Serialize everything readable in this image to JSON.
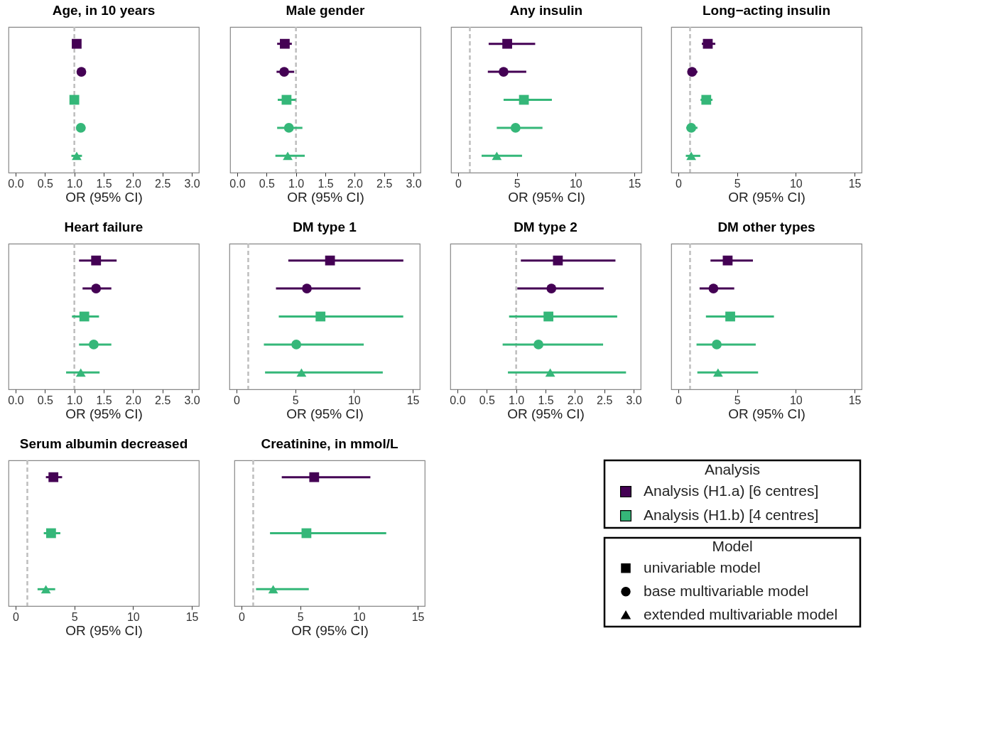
{
  "chart_data": [
    {
      "type": "scatter",
      "orientation": "horizontal",
      "title": "Age, in 10 years",
      "xlabel": "OR (95% CI)",
      "categories": [
        null,
        null,
        null,
        null,
        null
      ],
      "xlim": [
        -0.12,
        3.12
      ],
      "xticks": [
        {
          "value": 0,
          "label": "0.0"
        },
        0.5,
        {
          "value": 1,
          "label": "1.0"
        },
        1.5,
        {
          "value": 2,
          "label": "2.0"
        },
        2.5,
        {
          "value": 3,
          "label": "3.0"
        }
      ],
      "ref_lines": [
        {
          "axis": "x",
          "value": 1,
          "color": "#bebebe",
          "line_style": "dashed"
        }
      ],
      "tick_labels": "x",
      "grid": false,
      "series": [
        {
          "color": "#440154",
          "marker": "square",
          "values": [
            1.04,
            null,
            null,
            null,
            null
          ],
          "errors": [
            [
              0.97,
              1.11
            ],
            null,
            null,
            null,
            null
          ]
        },
        {
          "color": "#440154",
          "marker": "circle",
          "values": [
            null,
            1.12,
            null,
            null,
            null
          ],
          "errors": [
            null,
            [
              1.05,
              1.19
            ],
            null,
            null,
            null
          ]
        },
        {
          "color": "#35b779",
          "marker": "square",
          "values": [
            null,
            null,
            1.0,
            null,
            null
          ],
          "errors": [
            null,
            null,
            [
              0.93,
              1.07
            ],
            null,
            null
          ]
        },
        {
          "color": "#35b779",
          "marker": "circle",
          "values": [
            null,
            null,
            null,
            1.11,
            null
          ],
          "errors": [
            null,
            null,
            null,
            [
              1.03,
              1.19
            ],
            null
          ]
        },
        {
          "color": "#35b779",
          "marker": "triangle",
          "values": [
            null,
            null,
            null,
            null,
            1.04
          ],
          "errors": [
            null,
            null,
            null,
            null,
            [
              0.95,
              1.13
            ]
          ]
        }
      ]
    },
    {
      "type": "scatter",
      "orientation": "horizontal",
      "title": "Male gender",
      "xlabel": "OR (95% CI)",
      "categories": [
        null,
        null,
        null,
        null,
        null
      ],
      "xlim": [
        -0.12,
        3.12
      ],
      "xticks": [
        {
          "value": 0,
          "label": "0.0"
        },
        0.5,
        {
          "value": 1,
          "label": "1.0"
        },
        1.5,
        {
          "value": 2,
          "label": "2.0"
        },
        2.5,
        {
          "value": 3,
          "label": "3.0"
        }
      ],
      "ref_lines": [
        {
          "axis": "x",
          "value": 1,
          "color": "#bebebe",
          "line_style": "dashed"
        }
      ],
      "tick_labels": "x",
      "grid": false,
      "series": [
        {
          "color": "#440154",
          "marker": "square",
          "values": [
            0.81,
            null,
            null,
            null,
            null
          ],
          "errors": [
            [
              0.68,
              0.93
            ],
            null,
            null,
            null,
            null
          ]
        },
        {
          "color": "#440154",
          "marker": "circle",
          "values": [
            null,
            0.8,
            null,
            null,
            null
          ],
          "errors": [
            null,
            [
              0.67,
              0.97
            ],
            null,
            null,
            null
          ]
        },
        {
          "color": "#35b779",
          "marker": "square",
          "values": [
            null,
            null,
            0.84,
            null,
            null
          ],
          "errors": [
            null,
            null,
            [
              0.69,
              1.0
            ],
            null,
            null
          ]
        },
        {
          "color": "#35b779",
          "marker": "circle",
          "values": [
            null,
            null,
            null,
            0.88,
            null
          ],
          "errors": [
            null,
            null,
            null,
            [
              0.68,
              1.11
            ],
            null
          ]
        },
        {
          "color": "#35b779",
          "marker": "triangle",
          "values": [
            null,
            null,
            null,
            null,
            0.86
          ],
          "errors": [
            null,
            null,
            null,
            null,
            [
              0.65,
              1.15
            ]
          ]
        }
      ]
    },
    {
      "type": "scatter",
      "orientation": "horizontal",
      "title": "Any insulin",
      "xlabel": "OR (95% CI)",
      "categories": [
        null,
        null,
        null,
        null,
        null
      ],
      "xlim": [
        -0.6,
        15.6
      ],
      "xticks": [
        0,
        5,
        10,
        15
      ],
      "ref_lines": [
        {
          "axis": "x",
          "value": 1,
          "color": "#bebebe",
          "line_style": "dashed"
        }
      ],
      "tick_labels": "x",
      "grid": false,
      "series": [
        {
          "color": "#440154",
          "marker": "square",
          "values": [
            4.18,
            null,
            null,
            null,
            null
          ],
          "errors": [
            [
              2.6,
              6.56
            ],
            null,
            null,
            null,
            null
          ]
        },
        {
          "color": "#440154",
          "marker": "circle",
          "values": [
            null,
            3.87,
            null,
            null,
            null
          ],
          "errors": [
            null,
            [
              2.53,
              5.8
            ],
            null,
            null,
            null
          ]
        },
        {
          "color": "#35b779",
          "marker": "square",
          "values": [
            null,
            null,
            5.6,
            null,
            null
          ],
          "errors": [
            null,
            null,
            [
              3.87,
              7.98
            ],
            null,
            null
          ]
        },
        {
          "color": "#35b779",
          "marker": "circle",
          "values": [
            null,
            null,
            null,
            4.89,
            null
          ],
          "errors": [
            null,
            null,
            null,
            [
              3.29,
              7.18
            ],
            null
          ]
        },
        {
          "color": "#35b779",
          "marker": "triangle",
          "values": [
            null,
            null,
            null,
            null,
            3.29
          ],
          "errors": [
            null,
            null,
            null,
            null,
            [
              2.0,
              5.44
            ]
          ]
        }
      ]
    },
    {
      "type": "scatter",
      "orientation": "horizontal",
      "title": "Long−acting insulin",
      "xlabel": "OR (95% CI)",
      "categories": [
        null,
        null,
        null,
        null,
        null
      ],
      "xlim": [
        -0.6,
        15.6
      ],
      "xticks": [
        0,
        5,
        10,
        15
      ],
      "ref_lines": [
        {
          "axis": "x",
          "value": 1,
          "color": "#bebebe",
          "line_style": "dashed"
        }
      ],
      "tick_labels": "x",
      "grid": false,
      "series": [
        {
          "color": "#440154",
          "marker": "square",
          "values": [
            2.51,
            null,
            null,
            null,
            null
          ],
          "errors": [
            [
              2.0,
              3.15
            ],
            null,
            null,
            null,
            null
          ]
        },
        {
          "color": "#440154",
          "marker": "circle",
          "values": [
            null,
            1.17,
            null,
            null,
            null
          ],
          "errors": [
            null,
            [
              0.81,
              1.63
            ],
            null,
            null,
            null
          ]
        },
        {
          "color": "#35b779",
          "marker": "square",
          "values": [
            null,
            null,
            2.38,
            null,
            null
          ],
          "errors": [
            null,
            null,
            [
              1.89,
              2.91
            ],
            null,
            null
          ]
        },
        {
          "color": "#35b779",
          "marker": "circle",
          "values": [
            null,
            null,
            null,
            1.1,
            null
          ],
          "errors": [
            null,
            null,
            null,
            [
              0.68,
              1.63
            ],
            null
          ]
        },
        {
          "color": "#35b779",
          "marker": "triangle",
          "values": [
            null,
            null,
            null,
            null,
            1.1
          ],
          "errors": [
            null,
            null,
            null,
            null,
            [
              0.64,
              1.87
            ]
          ]
        }
      ]
    },
    {
      "type": "scatter",
      "orientation": "horizontal",
      "title": "Heart failure",
      "xlabel": "OR (95% CI)",
      "categories": [
        null,
        null,
        null,
        null,
        null
      ],
      "xlim": [
        -0.12,
        3.12
      ],
      "xticks": [
        {
          "value": 0,
          "label": "0.0"
        },
        0.5,
        {
          "value": 1,
          "label": "1.0"
        },
        1.5,
        {
          "value": 2,
          "label": "2.0"
        },
        2.5,
        {
          "value": 3,
          "label": "3.0"
        }
      ],
      "ref_lines": [
        {
          "axis": "x",
          "value": 1,
          "color": "#bebebe",
          "line_style": "dashed"
        }
      ],
      "tick_labels": "x",
      "grid": false,
      "series": [
        {
          "color": "#440154",
          "marker": "square",
          "values": [
            1.37,
            null,
            null,
            null,
            null
          ],
          "errors": [
            [
              1.08,
              1.72
            ],
            null,
            null,
            null,
            null
          ]
        },
        {
          "color": "#440154",
          "marker": "circle",
          "values": [
            null,
            1.37,
            null,
            null,
            null
          ],
          "errors": [
            null,
            [
              1.14,
              1.63
            ],
            null,
            null,
            null
          ]
        },
        {
          "color": "#35b779",
          "marker": "square",
          "values": [
            null,
            null,
            1.17,
            null,
            null
          ],
          "errors": [
            null,
            null,
            [
              0.96,
              1.42
            ],
            null,
            null
          ]
        },
        {
          "color": "#35b779",
          "marker": "circle",
          "values": [
            null,
            null,
            null,
            1.33,
            null
          ],
          "errors": [
            null,
            null,
            null,
            [
              1.08,
              1.63
            ],
            null
          ]
        },
        {
          "color": "#35b779",
          "marker": "triangle",
          "values": [
            null,
            null,
            null,
            null,
            1.11
          ],
          "errors": [
            null,
            null,
            null,
            null,
            [
              0.86,
              1.43
            ]
          ]
        }
      ]
    },
    {
      "type": "scatter",
      "orientation": "horizontal",
      "title": "DM type 1",
      "xlabel": "OR (95% CI)",
      "categories": [
        null,
        null,
        null,
        null,
        null
      ],
      "xlim": [
        -0.6,
        15.6
      ],
      "xticks": [
        0,
        5,
        10,
        15
      ],
      "ref_lines": [
        {
          "axis": "x",
          "value": 1,
          "color": "#bebebe",
          "line_style": "dashed"
        }
      ],
      "tick_labels": "x",
      "grid": false,
      "series": [
        {
          "color": "#440154",
          "marker": "square",
          "values": [
            7.96,
            null,
            null,
            null,
            null
          ],
          "errors": [
            [
              4.41,
              14.2
            ],
            null,
            null,
            null,
            null
          ]
        },
        {
          "color": "#440154",
          "marker": "circle",
          "values": [
            null,
            5.99,
            null,
            null,
            null
          ],
          "errors": [
            null,
            [
              3.36,
              10.55
            ],
            null,
            null,
            null
          ]
        },
        {
          "color": "#35b779",
          "marker": "square",
          "values": [
            null,
            null,
            7.15,
            null,
            null
          ],
          "errors": [
            null,
            null,
            [
              3.6,
              14.19
            ],
            null,
            null
          ]
        },
        {
          "color": "#35b779",
          "marker": "circle",
          "values": [
            null,
            null,
            null,
            5.09,
            null
          ],
          "errors": [
            null,
            null,
            null,
            [
              2.33,
              10.83
            ],
            null
          ]
        },
        {
          "color": "#35b779",
          "marker": "triangle",
          "values": [
            null,
            null,
            null,
            null,
            5.53
          ],
          "errors": [
            null,
            null,
            null,
            null,
            [
              2.43,
              12.45
            ]
          ]
        }
      ]
    },
    {
      "type": "scatter",
      "orientation": "horizontal",
      "title": "DM type 2",
      "xlabel": "OR (95% CI)",
      "categories": [
        null,
        null,
        null,
        null,
        null
      ],
      "xlim": [
        -0.12,
        3.12
      ],
      "xticks": [
        {
          "value": 0,
          "label": "0.0"
        },
        0.5,
        {
          "value": 1,
          "label": "1.0"
        },
        1.5,
        {
          "value": 2,
          "label": "2.0"
        },
        2.5,
        {
          "value": 3,
          "label": "3.0"
        }
      ],
      "ref_lines": [
        {
          "axis": "x",
          "value": 1,
          "color": "#bebebe",
          "line_style": "dashed"
        }
      ],
      "tick_labels": "x",
      "grid": false,
      "series": [
        {
          "color": "#440154",
          "marker": "square",
          "values": [
            1.71,
            null,
            null,
            null,
            null
          ],
          "errors": [
            [
              1.08,
              2.69
            ],
            null,
            null,
            null,
            null
          ]
        },
        {
          "color": "#440154",
          "marker": "circle",
          "values": [
            null,
            1.6,
            null,
            null,
            null
          ],
          "errors": [
            null,
            [
              1.02,
              2.49
            ],
            null,
            null,
            null
          ]
        },
        {
          "color": "#35b779",
          "marker": "square",
          "values": [
            null,
            null,
            1.55,
            null,
            null
          ],
          "errors": [
            null,
            null,
            [
              0.88,
              2.72
            ],
            null,
            null
          ]
        },
        {
          "color": "#35b779",
          "marker": "circle",
          "values": [
            null,
            null,
            null,
            1.38,
            null
          ],
          "errors": [
            null,
            null,
            null,
            [
              0.77,
              2.48
            ],
            null
          ]
        },
        {
          "color": "#35b779",
          "marker": "triangle",
          "values": [
            null,
            null,
            null,
            null,
            1.58
          ],
          "errors": [
            null,
            null,
            null,
            null,
            [
              0.86,
              2.87
            ]
          ]
        }
      ]
    },
    {
      "type": "scatter",
      "orientation": "horizontal",
      "title": "DM other types",
      "xlabel": "OR (95% CI)",
      "categories": [
        null,
        null,
        null,
        null,
        null
      ],
      "xlim": [
        -0.6,
        15.6
      ],
      "xticks": [
        0,
        5,
        10,
        15
      ],
      "ref_lines": [
        {
          "axis": "x",
          "value": 1,
          "color": "#bebebe",
          "line_style": "dashed"
        }
      ],
      "tick_labels": "x",
      "grid": false,
      "series": [
        {
          "color": "#440154",
          "marker": "square",
          "values": [
            4.2,
            null,
            null,
            null,
            null
          ],
          "errors": [
            [
              2.74,
              6.35
            ],
            null,
            null,
            null,
            null
          ]
        },
        {
          "color": "#440154",
          "marker": "circle",
          "values": [
            null,
            2.99,
            null,
            null,
            null
          ],
          "errors": [
            null,
            [
              1.81,
              4.76
            ],
            null,
            null,
            null
          ]
        },
        {
          "color": "#35b779",
          "marker": "square",
          "values": [
            null,
            null,
            4.42,
            null,
            null
          ],
          "errors": [
            null,
            null,
            [
              2.35,
              8.14
            ],
            null,
            null
          ]
        },
        {
          "color": "#35b779",
          "marker": "circle",
          "values": [
            null,
            null,
            null,
            3.27,
            null
          ],
          "errors": [
            null,
            null,
            null,
            [
              1.55,
              6.59
            ],
            null
          ]
        },
        {
          "color": "#35b779",
          "marker": "triangle",
          "values": [
            null,
            null,
            null,
            null,
            3.38
          ],
          "errors": [
            null,
            null,
            null,
            null,
            [
              1.62,
              6.79
            ]
          ]
        }
      ]
    },
    {
      "type": "scatter",
      "orientation": "horizontal",
      "title": "Serum albumin decreased",
      "xlabel": "OR (95% CI)",
      "categories": [
        null,
        null,
        null,
        null,
        null
      ],
      "xlim": [
        -0.6,
        15.6
      ],
      "xticks": [
        0,
        5,
        10,
        15
      ],
      "ref_lines": [
        {
          "axis": "x",
          "value": 1,
          "color": "#bebebe",
          "line_style": "dashed"
        }
      ],
      "tick_labels": "x",
      "grid": false,
      "series": [
        {
          "color": "#440154",
          "marker": "square",
          "values": [
            3.22,
            null,
            null,
            null,
            null
          ],
          "errors": [
            [
              2.58,
              3.96
            ],
            null,
            null,
            null,
            null
          ]
        },
        {
          "color": "#35b779",
          "marker": "square",
          "values": [
            null,
            null,
            3.02,
            null,
            null
          ],
          "errors": [
            null,
            null,
            [
              2.4,
              3.81
            ],
            null,
            null
          ]
        },
        {
          "color": "#35b779",
          "marker": "triangle",
          "values": [
            null,
            null,
            null,
            null,
            2.58
          ],
          "errors": [
            null,
            null,
            null,
            null,
            [
              1.87,
              3.37
            ]
          ]
        }
      ]
    },
    {
      "type": "scatter",
      "orientation": "horizontal",
      "title": "Creatinine, in mmol/L",
      "xlabel": "OR (95% CI)",
      "categories": [
        null,
        null,
        null,
        null,
        null
      ],
      "xlim": [
        -0.6,
        15.6
      ],
      "xticks": [
        0,
        5,
        10,
        15
      ],
      "ref_lines": [
        {
          "axis": "x",
          "value": 1,
          "color": "#bebebe",
          "line_style": "dashed"
        }
      ],
      "tick_labels": "x",
      "grid": false,
      "series": [
        {
          "color": "#440154",
          "marker": "square",
          "values": [
            6.19,
            null,
            null,
            null,
            null
          ],
          "errors": [
            [
              3.43,
              10.97
            ],
            null,
            null,
            null,
            null
          ]
        },
        {
          "color": "#35b779",
          "marker": "square",
          "values": [
            null,
            null,
            5.53,
            null,
            null
          ],
          "errors": [
            null,
            null,
            [
              2.43,
              12.32
            ],
            null,
            null
          ]
        },
        {
          "color": "#35b779",
          "marker": "triangle",
          "values": [
            null,
            null,
            null,
            null,
            2.7
          ],
          "errors": [
            null,
            null,
            null,
            null,
            [
              1.24,
              5.73
            ]
          ]
        }
      ]
    },
    {
      "type": "other",
      "legend_title": "Analysis",
      "series": [
        {
          "name": "Analysis (H1.a) [6 centres]",
          "color": "#440154",
          "marker": "square"
        },
        {
          "name": "Analysis (H1.b) [4 centres]",
          "color": "#35b779",
          "marker": "square"
        }
      ]
    },
    {
      "type": "other",
      "legend_title": "Model",
      "series": [
        {
          "name": "univariable model",
          "color": "#000000",
          "marker": "square"
        },
        {
          "name": "base multivariable model",
          "color": "#000000",
          "marker": "circle"
        },
        {
          "name": "extended multivariable model",
          "color": "#000000",
          "marker": "triangle"
        }
      ]
    }
  ]
}
